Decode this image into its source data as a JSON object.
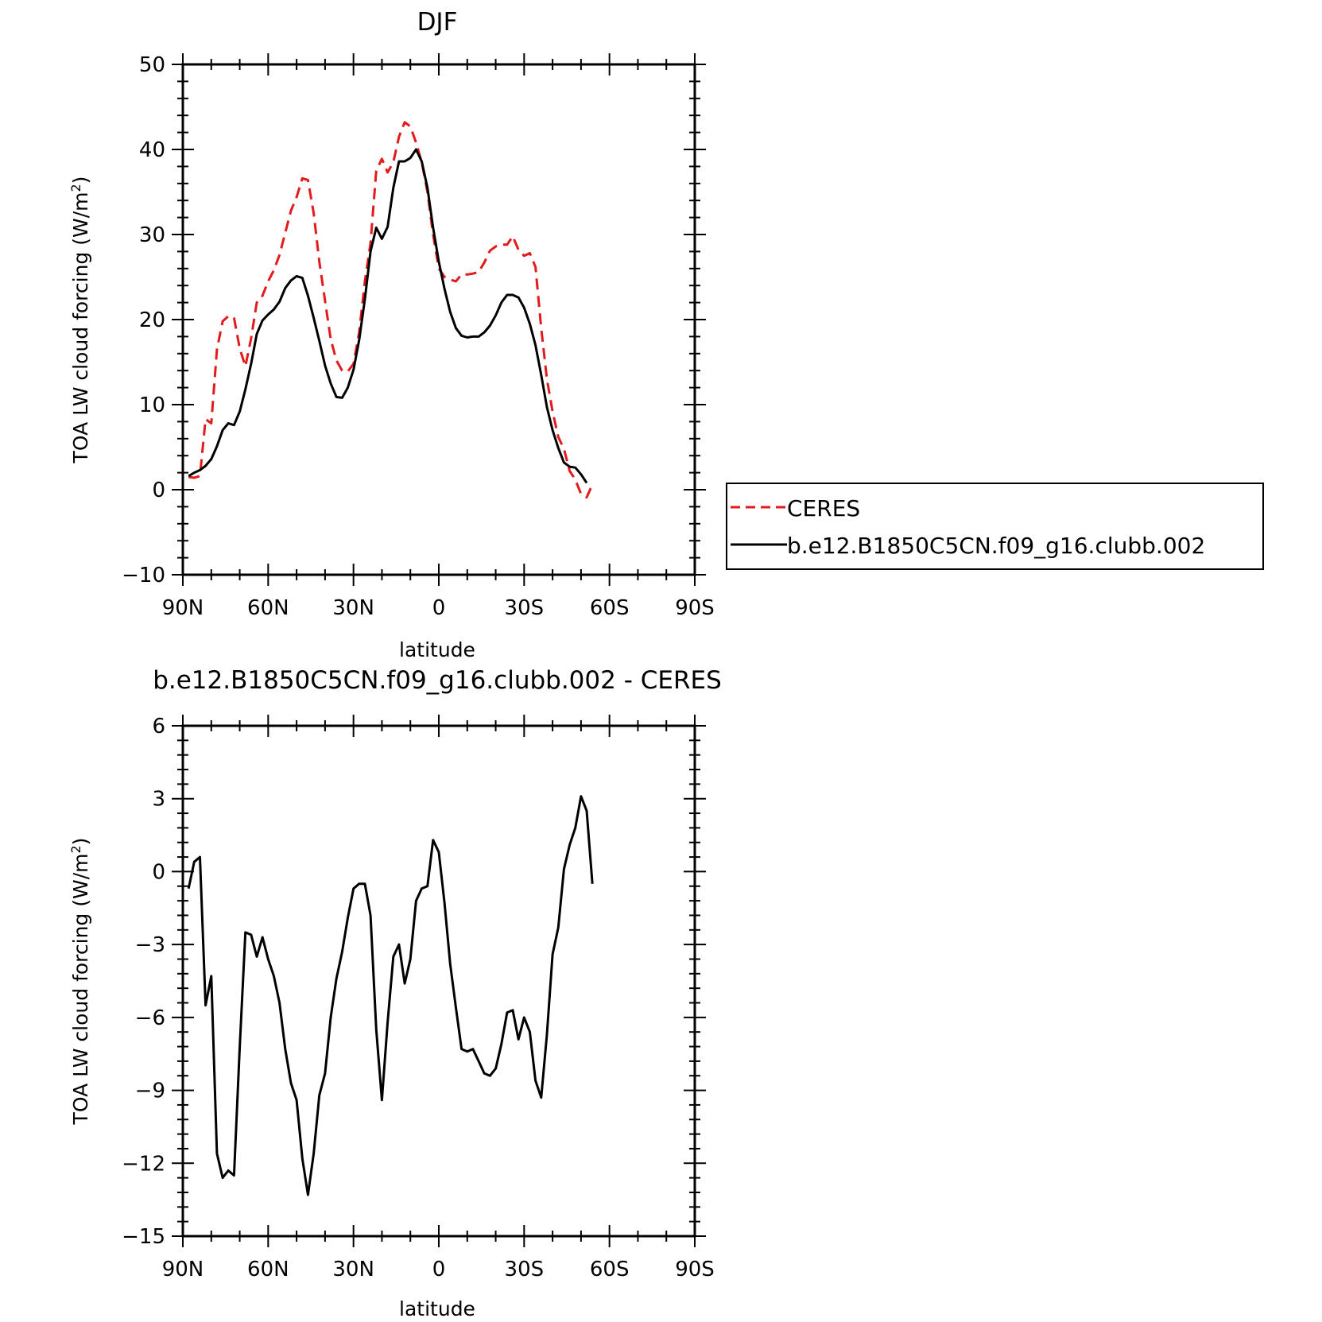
{
  "chart_data": [
    {
      "type": "line",
      "title": "DJF",
      "xlabel": "latitude",
      "ylabel": "TOA LW cloud forcing (W/m",
      "ylabel_sup": "2",
      "ylabel_close": ")",
      "xlim": [
        -90,
        90
      ],
      "ylim": [
        -10,
        50
      ],
      "yticks": [
        -10,
        0,
        10,
        20,
        30,
        40,
        50
      ],
      "xticks": [
        -90,
        -60,
        -30,
        0,
        30,
        60,
        90
      ],
      "xticklabels": [
        "90N",
        "60N",
        "30N",
        "0",
        "30S",
        "60S",
        "90S"
      ],
      "legend": {
        "placement": "right",
        "entries": [
          "CERES",
          "b.e12.B1850C5CN.f09_g16.clubb.002"
        ]
      },
      "series": [
        {
          "name": "CERES",
          "color": "#e31a1c",
          "style": "dashed",
          "points": [
            [
              -88,
              1.5
            ],
            [
              -86,
              1.4
            ],
            [
              -84,
              1.6
            ],
            [
              -82,
              8.3
            ],
            [
              -80,
              7.8
            ],
            [
              -78,
              16.5
            ],
            [
              -76,
              19.8
            ],
            [
              -74,
              20.4
            ],
            [
              -72,
              20.2
            ],
            [
              -70,
              16.6
            ],
            [
              -68,
              14.5
            ],
            [
              -66,
              17.8
            ],
            [
              -64,
              22
            ],
            [
              -62,
              22.8
            ],
            [
              -60,
              24.5
            ],
            [
              -58,
              25.8
            ],
            [
              -56,
              27.6
            ],
            [
              -54,
              30.2
            ],
            [
              -52,
              32.8
            ],
            [
              -50,
              34.4
            ],
            [
              -48,
              36.6
            ],
            [
              -46,
              36.4
            ],
            [
              -44,
              32.5
            ],
            [
              -42,
              26.8
            ],
            [
              -40,
              22.2
            ],
            [
              -38,
              17.7
            ],
            [
              -36,
              15.2
            ],
            [
              -34,
              14
            ],
            [
              -32,
              13.9
            ],
            [
              -30,
              14.8
            ],
            [
              -28,
              18.5
            ],
            [
              -26,
              24.5
            ],
            [
              -24,
              29
            ],
            [
              -22,
              37.5
            ],
            [
              -20,
              38.9
            ],
            [
              -18,
              37.3
            ],
            [
              -16,
              38.5
            ],
            [
              -14,
              41.5
            ],
            [
              -12,
              43.2
            ],
            [
              -10,
              42.7
            ],
            [
              -8,
              40.8
            ],
            [
              -6,
              38.5
            ],
            [
              -4,
              35
            ],
            [
              -2,
              30
            ],
            [
              0,
              26
            ],
            [
              2,
              25
            ],
            [
              4,
              24.7
            ],
            [
              6,
              24.5
            ],
            [
              8,
              25.3
            ],
            [
              10,
              25.3
            ],
            [
              12,
              25.4
            ],
            [
              14,
              25.6
            ],
            [
              16,
              26.7
            ],
            [
              18,
              28.1
            ],
            [
              20,
              28.6
            ],
            [
              22,
              28.8
            ],
            [
              24,
              28.8
            ],
            [
              26,
              29.8
            ],
            [
              28,
              28.2
            ],
            [
              30,
              27.5
            ],
            [
              32,
              27.8
            ],
            [
              34,
              26.2
            ],
            [
              36,
              19
            ],
            [
              38,
              13
            ],
            [
              40,
              9.2
            ],
            [
              42,
              6.2
            ],
            [
              44,
              4.8
            ],
            [
              46,
              2.2
            ],
            [
              48,
              1.2
            ],
            [
              50,
              -0.5
            ],
            [
              52,
              -0.9
            ],
            [
              54,
              0.6
            ]
          ]
        },
        {
          "name": "b.e12.B1850C5CN.f09_g16.clubb.002",
          "color": "#000000",
          "style": "solid",
          "points": [
            [
              -88,
              1.6
            ],
            [
              -86,
              2
            ],
            [
              -84,
              2.3
            ],
            [
              -82,
              2.8
            ],
            [
              -80,
              3.6
            ],
            [
              -78,
              5.1
            ],
            [
              -76,
              7
            ],
            [
              -74,
              7.8
            ],
            [
              -72,
              7.6
            ],
            [
              -70,
              9.2
            ],
            [
              -68,
              11.8
            ],
            [
              -66,
              14.8
            ],
            [
              -64,
              18.3
            ],
            [
              -62,
              19.9
            ],
            [
              -60,
              20.6
            ],
            [
              -58,
              21.2
            ],
            [
              -56,
              22.1
            ],
            [
              -54,
              23.7
            ],
            [
              -52,
              24.6
            ],
            [
              -50,
              25.1
            ],
            [
              -48,
              24.9
            ],
            [
              -46,
              22.8
            ],
            [
              -44,
              20.2
            ],
            [
              -42,
              17.5
            ],
            [
              -40,
              14.6
            ],
            [
              -38,
              12.5
            ],
            [
              -36,
              10.9
            ],
            [
              -34,
              10.8
            ],
            [
              -32,
              12
            ],
            [
              -30,
              14.1
            ],
            [
              -28,
              17.6
            ],
            [
              -26,
              22.4
            ],
            [
              -24,
              28
            ],
            [
              -22,
              30.8
            ],
            [
              -20,
              29.5
            ],
            [
              -18,
              30.9
            ],
            [
              -16,
              35.5
            ],
            [
              -14,
              38.6
            ],
            [
              -12,
              38.6
            ],
            [
              -10,
              39
            ],
            [
              -8,
              40
            ],
            [
              -6,
              38.6
            ],
            [
              -4,
              35.5
            ],
            [
              -2,
              30.8
            ],
            [
              0,
              26.8
            ],
            [
              2,
              23.6
            ],
            [
              4,
              20.9
            ],
            [
              6,
              19
            ],
            [
              8,
              18.1
            ],
            [
              10,
              17.9
            ],
            [
              12,
              18
            ],
            [
              14,
              18
            ],
            [
              16,
              18.5
            ],
            [
              18,
              19.3
            ],
            [
              20,
              20.5
            ],
            [
              22,
              22
            ],
            [
              24,
              22.9
            ],
            [
              26,
              22.9
            ],
            [
              28,
              22.6
            ],
            [
              30,
              21.4
            ],
            [
              32,
              19.5
            ],
            [
              34,
              17
            ],
            [
              36,
              13.5
            ],
            [
              38,
              9.7
            ],
            [
              40,
              7
            ],
            [
              42,
              4.9
            ],
            [
              44,
              3.2
            ],
            [
              46,
              2.7
            ],
            [
              48,
              2.6
            ],
            [
              50,
              1.8
            ],
            [
              52,
              0.8
            ]
          ]
        }
      ]
    },
    {
      "type": "line",
      "title": "b.e12.B1850C5CN.f09_g16.clubb.002 - CERES",
      "xlabel": "latitude",
      "ylabel": "TOA LW cloud forcing (W/m",
      "ylabel_sup": "2",
      "ylabel_close": ")",
      "xlim": [
        -90,
        90
      ],
      "ylim": [
        -15,
        6
      ],
      "yticks": [
        -15,
        -12,
        -9,
        -6,
        -3,
        0,
        3,
        6
      ],
      "xticks": [
        -90,
        -60,
        -30,
        0,
        30,
        60,
        90
      ],
      "xticklabels": [
        "90N",
        "60N",
        "30N",
        "0",
        "30S",
        "60S",
        "90S"
      ],
      "series": [
        {
          "color": "#000000",
          "style": "solid",
          "points": [
            [
              -88,
              -0.7
            ],
            [
              -86,
              0.4
            ],
            [
              -84,
              0.6
            ],
            [
              -82,
              -5.5
            ],
            [
              -80,
              -4.3
            ],
            [
              -78,
              -11.6
            ],
            [
              -76,
              -12.6
            ],
            [
              -74,
              -12.3
            ],
            [
              -72,
              -12.5
            ],
            [
              -70,
              -7.2
            ],
            [
              -68,
              -2.5
            ],
            [
              -66,
              -2.6
            ],
            [
              -64,
              -3.5
            ],
            [
              -62,
              -2.7
            ],
            [
              -60,
              -3.6
            ],
            [
              -58,
              -4.3
            ],
            [
              -56,
              -5.4
            ],
            [
              -54,
              -7.3
            ],
            [
              -52,
              -8.7
            ],
            [
              -50,
              -9.4
            ],
            [
              -48,
              -11.8
            ],
            [
              -46,
              -13.3
            ],
            [
              -44,
              -11.6
            ],
            [
              -42,
              -9.2
            ],
            [
              -40,
              -8.3
            ],
            [
              -38,
              -6
            ],
            [
              -36,
              -4.4
            ],
            [
              -34,
              -3.3
            ],
            [
              -32,
              -1.9
            ],
            [
              -30,
              -0.7
            ],
            [
              -28,
              -0.5
            ],
            [
              -26,
              -0.5
            ],
            [
              -24,
              -1.8
            ],
            [
              -22,
              -6.5
            ],
            [
              -20,
              -9.4
            ],
            [
              -18,
              -6.2
            ],
            [
              -16,
              -3.5
            ],
            [
              -14,
              -3
            ],
            [
              -12,
              -4.6
            ],
            [
              -10,
              -3.6
            ],
            [
              -8,
              -1.2
            ],
            [
              -6,
              -0.7
            ],
            [
              -4,
              -0.6
            ],
            [
              -2,
              1.3
            ],
            [
              0,
              0.8
            ],
            [
              2,
              -1.3
            ],
            [
              4,
              -3.8
            ],
            [
              6,
              -5.6
            ],
            [
              8,
              -7.3
            ],
            [
              10,
              -7.4
            ],
            [
              12,
              -7.3
            ],
            [
              14,
              -7.8
            ],
            [
              16,
              -8.3
            ],
            [
              18,
              -8.4
            ],
            [
              20,
              -8.1
            ],
            [
              22,
              -7.1
            ],
            [
              24,
              -5.8
            ],
            [
              26,
              -5.7
            ],
            [
              28,
              -6.9
            ],
            [
              30,
              -6
            ],
            [
              32,
              -6.6
            ],
            [
              34,
              -8.6
            ],
            [
              36,
              -9.3
            ],
            [
              38,
              -6.7
            ],
            [
              40,
              -3.4
            ],
            [
              42,
              -2.3
            ],
            [
              44,
              0.1
            ],
            [
              46,
              1.1
            ],
            [
              48,
              1.8
            ],
            [
              50,
              3.1
            ],
            [
              52,
              2.5
            ],
            [
              54,
              -0.5
            ]
          ]
        }
      ]
    }
  ]
}
